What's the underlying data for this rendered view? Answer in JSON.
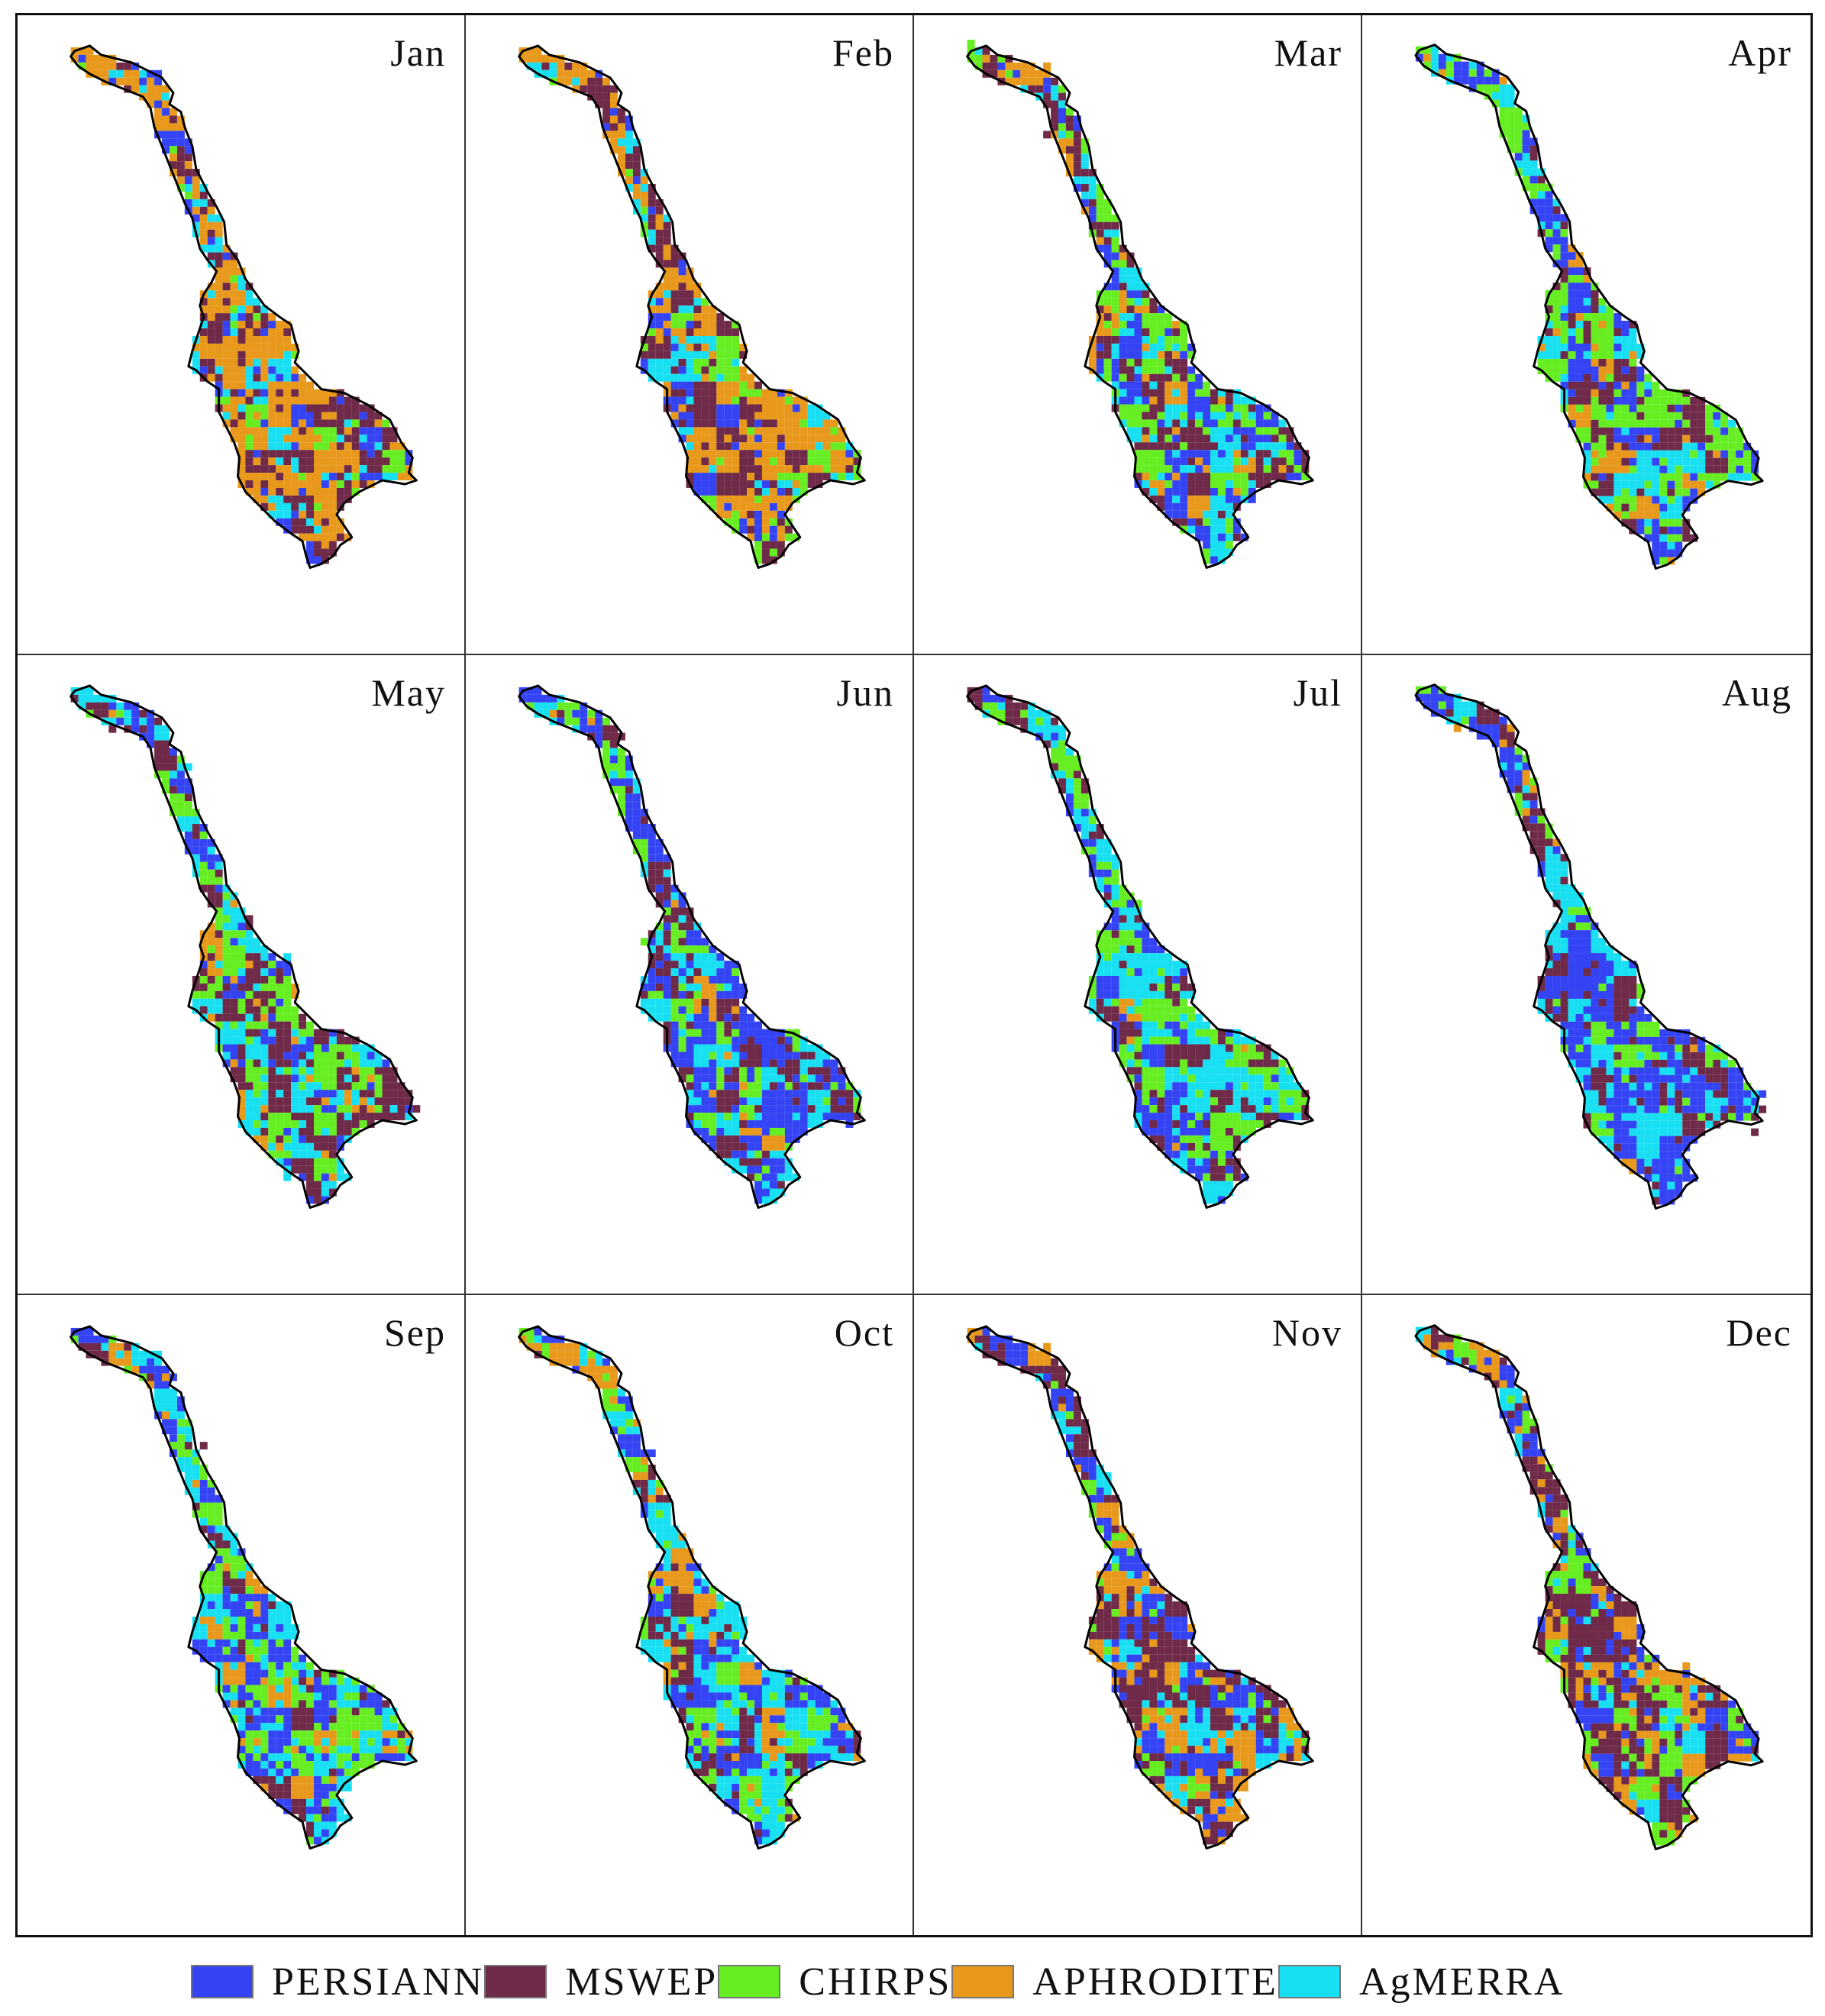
{
  "chart_data": {
    "type": "heatmap",
    "title": "",
    "description": "Spatial map of best-performing precipitation product per grid cell for each month",
    "legend": [
      {
        "name": "PERSIANN",
        "color": "#3444f5"
      },
      {
        "name": "MSWEP",
        "color": "#6e2a48"
      },
      {
        "name": "CHIRPS",
        "color": "#66ee22"
      },
      {
        "name": "APHRODITE",
        "color": "#e8981a"
      },
      {
        "name": "AgMERRA",
        "color": "#18e0f2"
      }
    ],
    "panels": [
      {
        "month": "Jan",
        "mix": {
          "PERSIANN": 0.14,
          "MSWEP": 0.22,
          "CHIRPS": 0.08,
          "APHRODITE": 0.4,
          "AgMERRA": 0.16
        }
      },
      {
        "month": "Feb",
        "mix": {
          "PERSIANN": 0.16,
          "MSWEP": 0.24,
          "CHIRPS": 0.12,
          "APHRODITE": 0.34,
          "AgMERRA": 0.14
        }
      },
      {
        "month": "Mar",
        "mix": {
          "PERSIANN": 0.22,
          "MSWEP": 0.24,
          "CHIRPS": 0.22,
          "APHRODITE": 0.1,
          "AgMERRA": 0.22
        }
      },
      {
        "month": "Apr",
        "mix": {
          "PERSIANN": 0.3,
          "MSWEP": 0.16,
          "CHIRPS": 0.28,
          "APHRODITE": 0.08,
          "AgMERRA": 0.18
        }
      },
      {
        "month": "May",
        "mix": {
          "PERSIANN": 0.16,
          "MSWEP": 0.28,
          "CHIRPS": 0.22,
          "APHRODITE": 0.08,
          "AgMERRA": 0.26
        }
      },
      {
        "month": "Jun",
        "mix": {
          "PERSIANN": 0.36,
          "MSWEP": 0.22,
          "CHIRPS": 0.18,
          "APHRODITE": 0.02,
          "AgMERRA": 0.22
        }
      },
      {
        "month": "Jul",
        "mix": {
          "PERSIANN": 0.24,
          "MSWEP": 0.22,
          "CHIRPS": 0.26,
          "APHRODITE": 0.02,
          "AgMERRA": 0.26
        }
      },
      {
        "month": "Aug",
        "mix": {
          "PERSIANN": 0.38,
          "MSWEP": 0.26,
          "CHIRPS": 0.12,
          "APHRODITE": 0.02,
          "AgMERRA": 0.22
        }
      },
      {
        "month": "Sep",
        "mix": {
          "PERSIANN": 0.22,
          "MSWEP": 0.1,
          "CHIRPS": 0.26,
          "APHRODITE": 0.1,
          "AgMERRA": 0.32
        }
      },
      {
        "month": "Oct",
        "mix": {
          "PERSIANN": 0.22,
          "MSWEP": 0.1,
          "CHIRPS": 0.24,
          "APHRODITE": 0.16,
          "AgMERRA": 0.28
        }
      },
      {
        "month": "Nov",
        "mix": {
          "PERSIANN": 0.24,
          "MSWEP": 0.3,
          "CHIRPS": 0.1,
          "APHRODITE": 0.24,
          "AgMERRA": 0.12
        }
      },
      {
        "month": "Dec",
        "mix": {
          "PERSIANN": 0.2,
          "MSWEP": 0.28,
          "CHIRPS": 0.16,
          "APHRODITE": 0.24,
          "AgMERRA": 0.12
        }
      }
    ],
    "grid": {
      "rows": 3,
      "cols": 4
    },
    "legend_position": "bottom"
  }
}
